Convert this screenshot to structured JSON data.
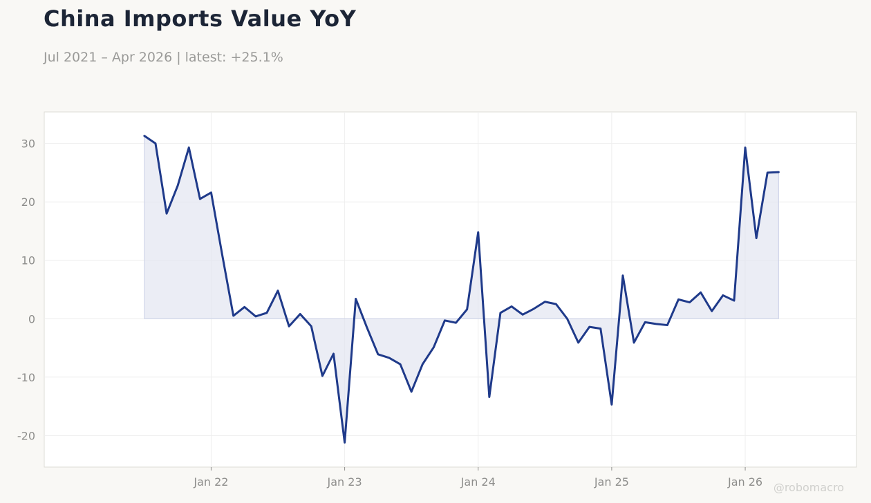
{
  "header": {
    "title": "China Imports Value YoY",
    "subtitle": "Jul 2021 – Apr 2026 | latest: +25.1%"
  },
  "watermark": "@robomacro",
  "colors": {
    "line": "#1f3a8a",
    "area": "#e3e6f1",
    "background": "#f9f8f5",
    "plot_background": "#ffffff",
    "grid": "#eeeeee"
  },
  "chart_data": {
    "type": "area",
    "x": [
      "2021-07",
      "2021-08",
      "2021-09",
      "2021-10",
      "2021-11",
      "2021-12",
      "2022-01",
      "2022-02",
      "2022-03",
      "2022-04",
      "2022-05",
      "2022-06",
      "2022-07",
      "2022-08",
      "2022-09",
      "2022-10",
      "2022-11",
      "2022-12",
      "2023-01",
      "2023-02",
      "2023-03",
      "2023-04",
      "2023-05",
      "2023-06",
      "2023-07",
      "2023-08",
      "2023-09",
      "2023-10",
      "2023-11",
      "2023-12",
      "2024-01",
      "2024-02",
      "2024-03",
      "2024-04",
      "2024-05",
      "2024-06",
      "2024-07",
      "2024-08",
      "2024-09",
      "2024-10",
      "2024-11",
      "2024-12",
      "2025-01",
      "2025-02",
      "2025-03",
      "2025-04",
      "2025-05",
      "2025-06",
      "2025-07",
      "2025-08",
      "2025-09",
      "2025-10",
      "2025-11",
      "2025-12",
      "2026-01",
      "2026-02",
      "2026-03",
      "2026-04"
    ],
    "series": [
      {
        "values": [
          31.3,
          30.0,
          18.0,
          22.8,
          29.3,
          20.5,
          21.6,
          10.9,
          0.5,
          2.0,
          0.4,
          1.0,
          4.8,
          -1.3,
          0.8,
          -1.3,
          -9.8,
          -6.0,
          -21.2,
          3.4,
          -1.5,
          -6.1,
          -6.7,
          -7.8,
          -12.5,
          -7.8,
          -4.9,
          -0.3,
          -0.7,
          1.6,
          14.8,
          -13.4,
          1.0,
          2.1,
          0.7,
          1.7,
          2.9,
          2.5,
          0.0,
          -4.1,
          -1.4,
          -1.7,
          -14.7,
          7.4,
          -4.1,
          -0.6,
          -0.9,
          -1.1,
          3.3,
          2.8,
          4.5,
          1.3,
          4.0,
          3.1,
          29.3,
          13.8,
          25.0,
          25.1
        ]
      }
    ],
    "xticks": [
      "Jan 22",
      "Jan 23",
      "Jan 24",
      "Jan 25",
      "Jan 26"
    ],
    "xtick_dates": [
      "2022-01",
      "2023-01",
      "2024-01",
      "2025-01",
      "2026-01"
    ],
    "yticks": [
      "30",
      "20",
      "10",
      "0",
      "-10",
      "-20"
    ],
    "ytick_values": [
      30,
      20,
      10,
      0,
      -10,
      -20
    ],
    "xlim": [
      "2020-10",
      "2026-11"
    ],
    "ylim": [
      -25.4,
      35.4
    ],
    "grid": true,
    "title": "China Imports Value YoY",
    "xlabel": "",
    "ylabel": ""
  }
}
